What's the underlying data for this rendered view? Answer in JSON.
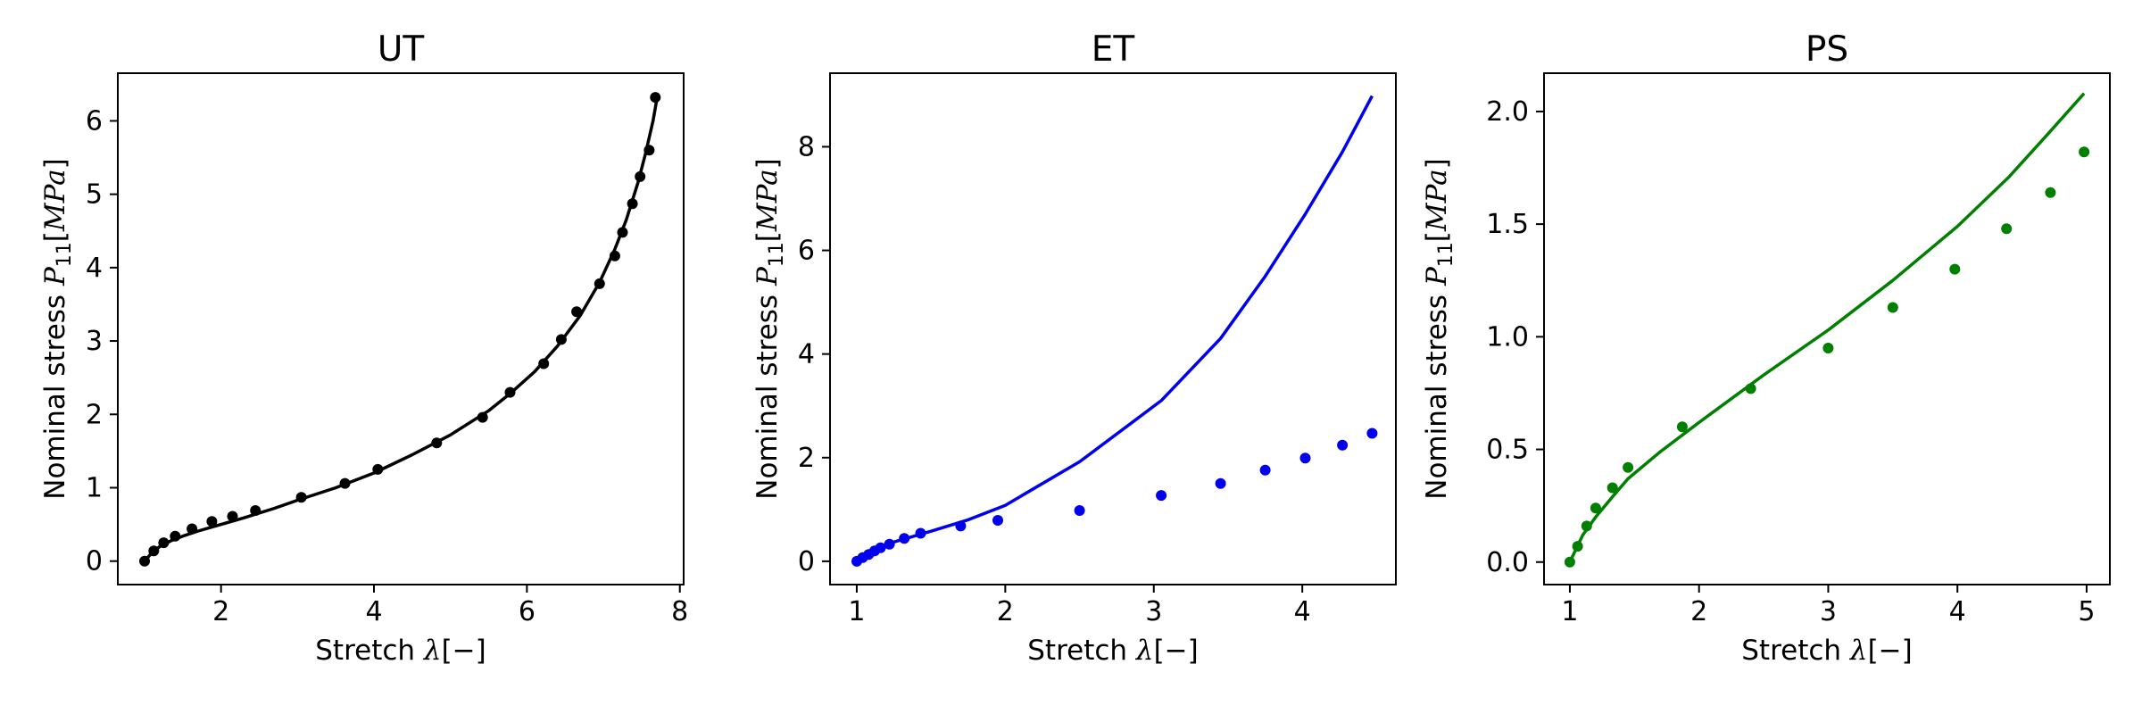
{
  "chart_data": [
    {
      "type": "scatter",
      "title": "UT",
      "xlabel": "Stretch λ[−]",
      "ylabel": "Nominal stress P11[MPa]",
      "xlim": [
        0.65,
        8.05
      ],
      "ylim": [
        -0.32,
        6.65
      ],
      "xticks": [
        2,
        4,
        6,
        8
      ],
      "yticks": [
        0,
        1,
        2,
        3,
        4,
        5,
        6
      ],
      "grid": false,
      "color": "#000000",
      "series": [
        {
          "kind": "points",
          "x": [
            1.0,
            1.12,
            1.25,
            1.4,
            1.62,
            1.88,
            2.15,
            2.45,
            3.05,
            3.62,
            4.05,
            4.82,
            5.42,
            5.78,
            6.22,
            6.45,
            6.65,
            6.95,
            7.15,
            7.25,
            7.38,
            7.48,
            7.6,
            7.68
          ],
          "y": [
            0.0,
            0.14,
            0.25,
            0.34,
            0.44,
            0.54,
            0.61,
            0.69,
            0.87,
            1.06,
            1.25,
            1.61,
            1.96,
            2.3,
            2.69,
            3.02,
            3.4,
            3.78,
            4.16,
            4.48,
            4.87,
            5.24,
            5.6,
            6.32
          ]
        },
        {
          "kind": "line",
          "x": [
            1.0,
            1.1,
            1.2,
            1.35,
            1.5,
            1.7,
            2.0,
            2.3,
            2.7,
            3.0,
            3.5,
            4.0,
            4.5,
            5.0,
            5.5,
            5.8,
            6.1,
            6.4,
            6.7,
            6.95,
            7.15,
            7.3,
            7.45,
            7.55,
            7.65,
            7.7
          ],
          "y": [
            0.0,
            0.12,
            0.2,
            0.28,
            0.34,
            0.41,
            0.5,
            0.59,
            0.72,
            0.83,
            1.0,
            1.2,
            1.45,
            1.72,
            2.05,
            2.3,
            2.58,
            2.93,
            3.35,
            3.8,
            4.25,
            4.65,
            5.15,
            5.55,
            6.0,
            6.3
          ]
        }
      ]
    },
    {
      "type": "scatter",
      "title": "ET",
      "xlabel": "Stretch λ[−]",
      "ylabel": "Nominal stress P11[MPa]",
      "xlim": [
        0.82,
        4.63
      ],
      "ylim": [
        -0.45,
        9.42
      ],
      "xticks": [
        1,
        2,
        3,
        4
      ],
      "yticks": [
        0,
        2,
        4,
        6,
        8
      ],
      "grid": false,
      "color": "#0000ee",
      "series": [
        {
          "kind": "points",
          "x": [
            1.0,
            1.04,
            1.08,
            1.12,
            1.16,
            1.22,
            1.32,
            1.43,
            1.7,
            1.95,
            2.5,
            3.05,
            3.45,
            3.75,
            4.02,
            4.27,
            4.47
          ],
          "y": [
            0.0,
            0.07,
            0.13,
            0.2,
            0.26,
            0.33,
            0.44,
            0.54,
            0.68,
            0.79,
            0.98,
            1.27,
            1.5,
            1.76,
            1.99,
            2.24,
            2.47
          ]
        },
        {
          "kind": "line",
          "x": [
            1.0,
            1.2,
            1.5,
            1.75,
            2.0,
            2.5,
            3.05,
            3.45,
            3.75,
            4.02,
            4.27,
            4.47
          ],
          "y": [
            0.0,
            0.33,
            0.58,
            0.8,
            1.08,
            1.92,
            3.1,
            4.3,
            5.5,
            6.7,
            7.9,
            8.98
          ]
        }
      ]
    },
    {
      "type": "scatter",
      "title": "PS",
      "xlabel": "Stretch λ[−]",
      "ylabel": "Nominal stress P11[MPa]",
      "xlim": [
        0.8,
        5.18
      ],
      "ylim": [
        -0.1,
        2.17
      ],
      "xticks": [
        1,
        2,
        3,
        4,
        5
      ],
      "yticks": [
        0.0,
        0.5,
        1.0,
        1.5,
        2.0
      ],
      "yticklabels": [
        "0.0",
        "0.5",
        "1.0",
        "1.5",
        "2.0"
      ],
      "grid": false,
      "color": "#007f00",
      "series": [
        {
          "kind": "points",
          "x": [
            1.0,
            1.06,
            1.13,
            1.2,
            1.33,
            1.45,
            1.87,
            2.4,
            3.0,
            3.5,
            3.98,
            4.38,
            4.72,
            4.98
          ],
          "y": [
            0.0,
            0.07,
            0.16,
            0.24,
            0.33,
            0.42,
            0.6,
            0.77,
            0.95,
            1.13,
            1.3,
            1.48,
            1.64,
            1.82
          ]
        },
        {
          "kind": "line",
          "x": [
            1.0,
            1.1,
            1.2,
            1.33,
            1.45,
            1.7,
            2.0,
            2.5,
            3.0,
            3.5,
            4.0,
            4.4,
            4.7,
            4.98
          ],
          "y": [
            0.0,
            0.12,
            0.2,
            0.29,
            0.37,
            0.49,
            0.62,
            0.83,
            1.03,
            1.25,
            1.49,
            1.71,
            1.9,
            2.08
          ]
        }
      ]
    }
  ]
}
